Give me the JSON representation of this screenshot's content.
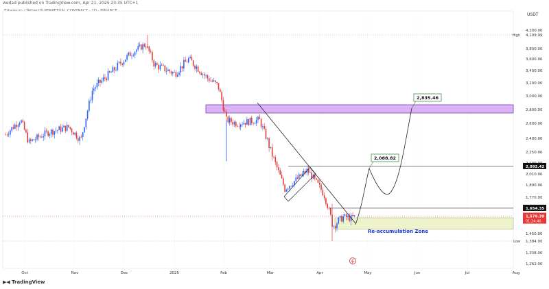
{
  "header": {
    "published": "wedad published on TradingView.com, Apr 21, 2025 23:35 UTC+1",
    "symbol": "Ethereum / TetherUS PERPETUAL CONTRACT · 1D · BINANCE"
  },
  "currency": "USDT",
  "footer": {
    "brand": "TradingView"
  },
  "colors": {
    "up": "#2962ff",
    "down": "#e53935",
    "zone_top": "#d9b3f5",
    "zone_bottom": "#eef3cc",
    "annotation": "#2e7d32"
  },
  "chart_data": {
    "type": "candlestick",
    "xlim_months": [
      "Oct",
      "Nov",
      "Dec",
      "2025",
      "Feb",
      "Mar",
      "Apr",
      "May",
      "Jun",
      "Jul",
      "Aug"
    ],
    "y_ticks": [
      "4,200.00",
      "3,800.00",
      "3,600.00",
      "3,400.00",
      "3,200.00",
      "3,000.00",
      "2,800.00",
      "2,600.00",
      "2,400.00",
      "2,250.00",
      "2,130.00",
      "2,010.00",
      "1,890.00",
      "1,770.00",
      "1,560.00",
      "1,450.00",
      "1,338.00",
      "1,262.00"
    ],
    "price_labels": [
      {
        "text": "High",
        "value": "4,109.99",
        "price": 4109.99
      },
      {
        "text": "",
        "value": "2,092.42",
        "price": 2092.42
      },
      {
        "text": "",
        "value": "1,654.35",
        "price": 1654.35
      },
      {
        "text": "",
        "value": "1,576.39",
        "price": 1576.39,
        "sub": "01:24:40"
      },
      {
        "text": "Low",
        "value": "1,384.00",
        "price": 1384.0
      }
    ],
    "annotations": [
      {
        "label": "2,088.82",
        "price": 2088.82
      },
      {
        "label": "2,835.46",
        "price": 2835.46
      }
    ],
    "zones": [
      {
        "label": "",
        "low": 2750,
        "high": 2870
      },
      {
        "label": "Re-accumulation Zone",
        "low": 1480,
        "high": 1560
      }
    ],
    "ohlc_summary": [
      [
        "Oct",
        2450,
        2700,
        2300
      ],
      [
        "Nov",
        2600,
        3500,
        2400
      ],
      [
        "Dec",
        3600,
        4109.99,
        3100
      ],
      [
        "2025",
        3400,
        3700,
        2900
      ],
      [
        "Feb",
        2700,
        3000,
        2150
      ],
      [
        "Mar",
        2200,
        2550,
        1760
      ],
      [
        "Apr",
        1580,
        1690,
        1384
      ]
    ]
  }
}
